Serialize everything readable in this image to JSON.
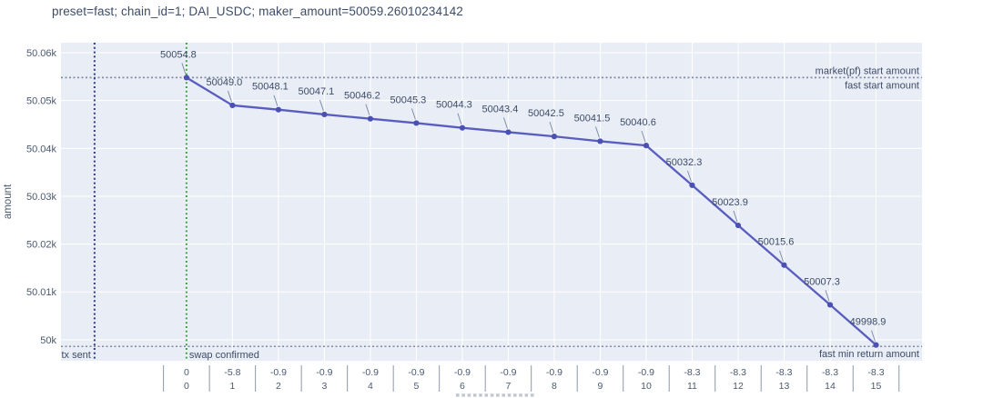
{
  "theme": {
    "page_bg": "#ffffff",
    "plot_bg": "#e9edf6",
    "grid": "#ffffff",
    "title_text": "#3d4c66",
    "tick_text": "#4a5970",
    "annotation_text": "#3d4c66",
    "ref_line": "#7b89a3",
    "divider": "#8e97a8",
    "series_line": "#585dbf",
    "series_marker": "#4b50b4",
    "tx_sent_line": "#2b3a99",
    "swap_confirmed_line": "#3da045"
  },
  "chart_data": {
    "type": "line",
    "title": "preset=fast; chain_id=1; DAI_USDC; maker_amount=50059.26010234142",
    "ylabel": "amount",
    "legend": false,
    "grid": true,
    "xlim": [
      -2.73,
      16.0
    ],
    "ylim": [
      49995.6,
      50062.1
    ],
    "categories_index": [
      "0",
      "1",
      "2",
      "3",
      "4",
      "5",
      "6",
      "7",
      "8",
      "9",
      "10",
      "11",
      "12",
      "13",
      "14",
      "15"
    ],
    "categories_diff": [
      "0",
      "-5.8",
      "-0.9",
      "-0.9",
      "-0.9",
      "-0.9",
      "-0.9",
      "-0.9",
      "-0.9",
      "-0.9",
      "-0.9",
      "-8.3",
      "-8.3",
      "-8.3",
      "-8.3",
      "-8.3"
    ],
    "series": [
      {
        "name": "amount",
        "values": [
          50054.8,
          50049.0,
          50048.1,
          50047.1,
          50046.2,
          50045.3,
          50044.3,
          50043.4,
          50042.5,
          50041.5,
          50040.6,
          50032.3,
          50023.9,
          50015.6,
          50007.3,
          49998.9
        ],
        "point_labels": [
          "50054.8",
          "50049.0",
          "50048.1",
          "50047.1",
          "50046.2",
          "50045.3",
          "50044.3",
          "50043.4",
          "50042.5",
          "50041.5",
          "50040.6",
          "50032.3",
          "50023.9",
          "50015.6",
          "50007.3",
          "49998.9"
        ]
      }
    ],
    "y_ticks": [
      {
        "label": "50k",
        "value": 50000
      },
      {
        "label": "50.01k",
        "value": 50010
      },
      {
        "label": "50.02k",
        "value": 50020
      },
      {
        "label": "50.03k",
        "value": 50030
      },
      {
        "label": "50.04k",
        "value": 50040
      },
      {
        "label": "50.05k",
        "value": 50050
      },
      {
        "label": "50.06k",
        "value": 50060
      }
    ],
    "reference_lines": [
      {
        "id": "market-pf-start",
        "label": "market(pf) start amount",
        "value": 50054.8,
        "label_side": "above"
      },
      {
        "id": "fast-start",
        "label": "fast start amount",
        "value": 50054.8,
        "label_side": "below"
      },
      {
        "id": "fast-min-return",
        "label": "fast min return amount",
        "value": 49998.6,
        "label_side": "below"
      }
    ],
    "event_lines": [
      {
        "id": "tx-sent",
        "label": "tx sent",
        "x": -2,
        "label_side": "left"
      },
      {
        "id": "swap-confirmed",
        "label": "swap confirmed",
        "x": 0,
        "label_side": "right"
      }
    ]
  }
}
